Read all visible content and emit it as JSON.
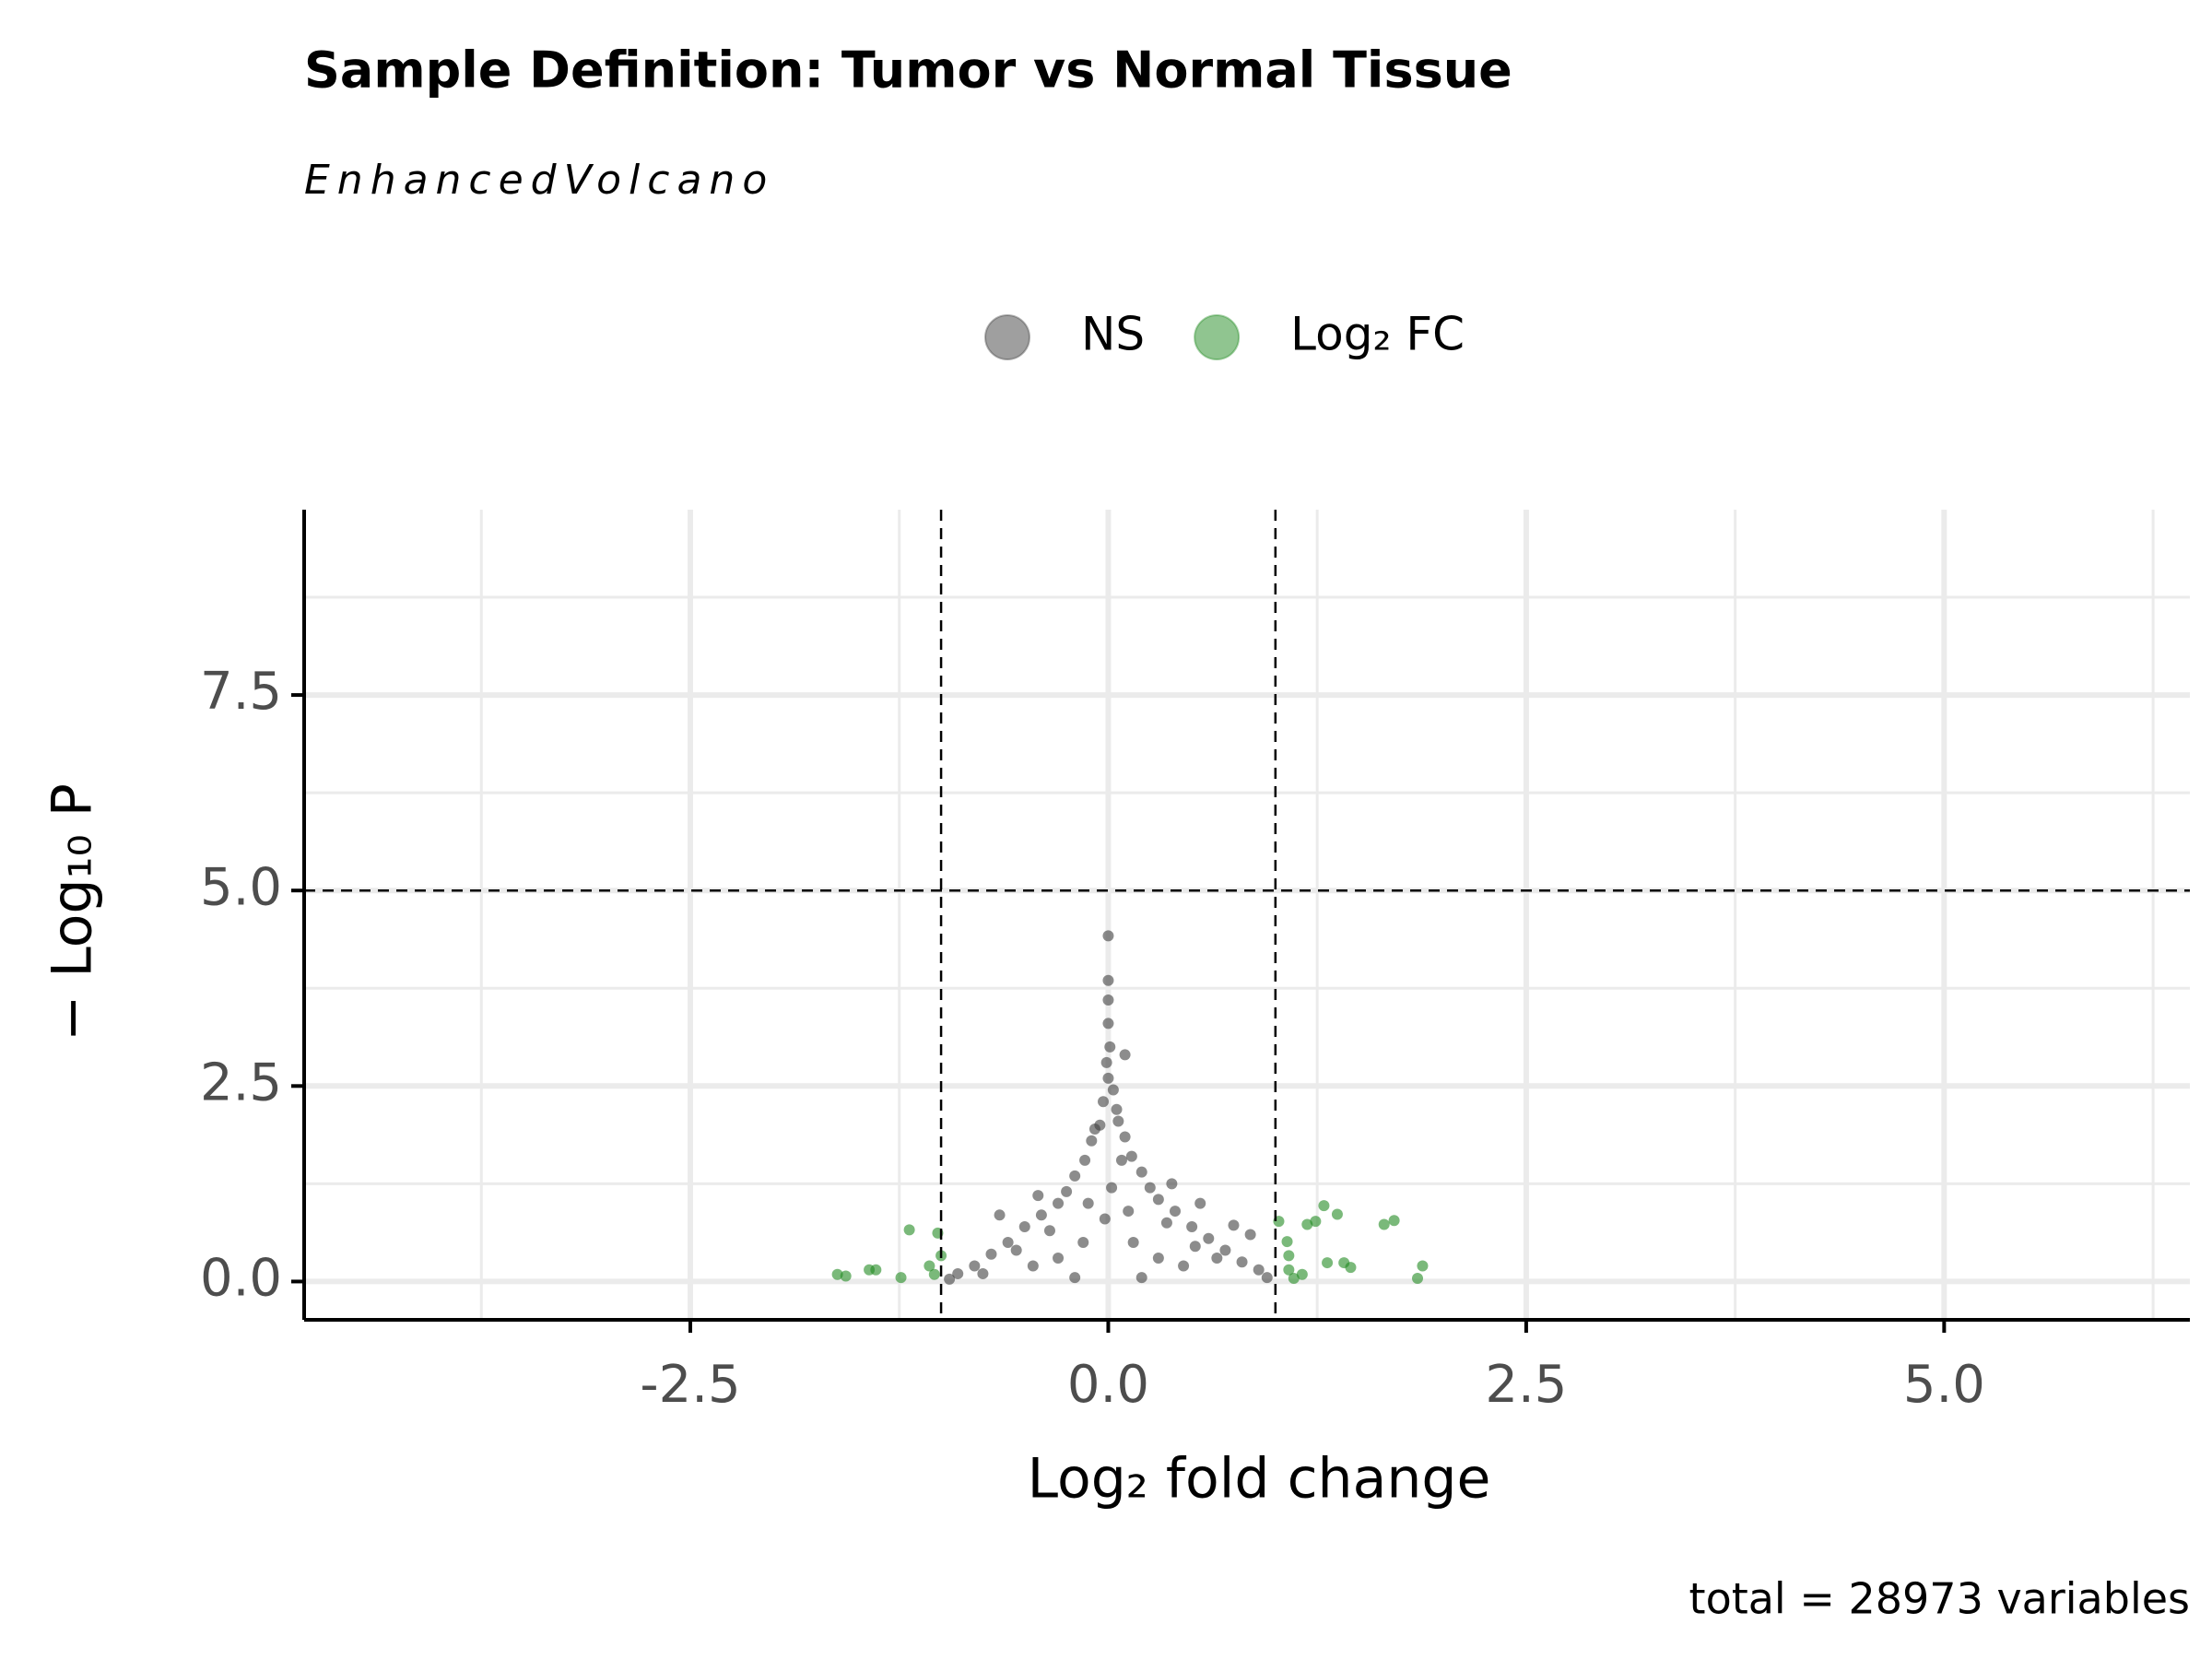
{
  "chart_data": {
    "type": "scatter",
    "title": "Sample Definition: Tumor vs Normal Tissue",
    "subtitle": "EnhancedVolcano",
    "x_label": "Log₂ fold change",
    "y_label": "− Log₁₀ P",
    "caption": "total = 28973 variables",
    "xlim": [
      -4.81,
      6.47
    ],
    "ylim": [
      -0.49,
      9.87
    ],
    "xticks": [
      -2.5,
      {
        "value": 0,
        "label": "0.0"
      },
      2.5,
      {
        "value": 5,
        "label": "5.0"
      }
    ],
    "yticks": [
      {
        "value": 0,
        "label": "0.0"
      },
      2.5,
      {
        "value": 5,
        "label": "5.0"
      },
      7.5
    ],
    "x_minor_grid": [
      -3.75,
      -1.25,
      1.25,
      3.75,
      6.25
    ],
    "y_minor_grid": [
      1.25,
      3.75,
      6.25,
      8.75
    ],
    "vlines": [
      -1,
      1
    ],
    "hline": 5,
    "grid": true,
    "legend": "top",
    "series": [
      {
        "name": "NS",
        "color": "#404040",
        "x": [
          0,
          0,
          0,
          0,
          0.01,
          -0.01,
          0,
          0.03,
          -0.03,
          0.06,
          -0.05,
          0.1,
          -0.1,
          0.14,
          -0.14,
          0.2,
          -0.2,
          0.25,
          -0.25,
          0.3,
          -0.3,
          0.4,
          -0.4,
          0.5,
          -0.5,
          0.6,
          -0.6,
          0.7,
          -0.7,
          0.8,
          -0.8,
          0.9,
          -0.9,
          0.95,
          -0.95,
          0.3,
          -0.3,
          0.15,
          -0.15,
          0.45,
          -0.45,
          0.2,
          -0.2,
          0.55,
          0.38,
          -0.42,
          0.75,
          0.85,
          -0.65,
          0.1,
          0.05,
          -0.08,
          0.02,
          -0.02,
          0.65,
          -0.75,
          0.35,
          -0.35,
          0.12,
          -0.12,
          0.08,
          0.52,
          -0.55
        ],
        "values": [
          4.42,
          3.85,
          3.6,
          3.3,
          3.0,
          2.8,
          2.6,
          2.45,
          2.3,
          2.05,
          2.0,
          1.85,
          1.8,
          1.6,
          1.55,
          1.4,
          1.35,
          1.2,
          1.15,
          1.05,
          1.0,
          0.9,
          0.85,
          0.7,
          0.7,
          0.55,
          0.5,
          0.4,
          0.35,
          0.25,
          0.2,
          0.15,
          0.1,
          0.05,
          0.03,
          0.3,
          0.3,
          0.5,
          0.5,
          0.2,
          0.2,
          0.05,
          0.05,
          1.0,
          1.25,
          1.1,
          0.72,
          0.6,
          0.85,
          2.9,
          2.2,
          1.95,
          1.2,
          0.8,
          0.3,
          0.1,
          0.75,
          0.65,
          0.9,
          1.0,
          1.55,
          0.45,
          0.4
        ]
      },
      {
        "name": "Log₂ FC",
        "color": "#228b22",
        "x": [
          -1.62,
          -1.57,
          -1.43,
          -1.39,
          -1.24,
          -1.19,
          -1.07,
          -1.02,
          -1.0,
          -1.04,
          1.02,
          1.07,
          1.08,
          1.16,
          1.19,
          1.24,
          1.29,
          1.31,
          1.37,
          1.41,
          1.45,
          1.65,
          1.71,
          1.88,
          1.85,
          1.08,
          1.11
        ],
        "values": [
          0.09,
          0.07,
          0.15,
          0.15,
          0.05,
          0.66,
          0.2,
          0.62,
          0.33,
          0.09,
          0.77,
          0.51,
          0.15,
          0.09,
          0.73,
          0.77,
          0.97,
          0.24,
          0.86,
          0.24,
          0.18,
          0.73,
          0.78,
          0.2,
          0.04,
          0.33,
          0.04
        ]
      }
    ]
  }
}
